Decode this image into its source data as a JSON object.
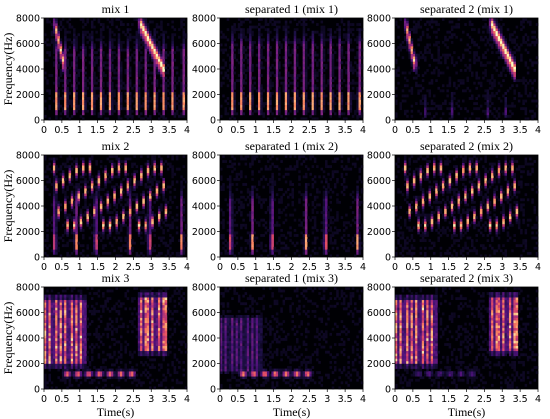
{
  "chart_data": [
    {
      "type": "heatmap",
      "title": "mix 1",
      "xlabel": "",
      "ylabel": "Frequency(Hz)",
      "xlim": [
        0,
        4
      ],
      "ylim": [
        0,
        8000
      ],
      "xticks": [
        "0",
        "0.5",
        "1",
        "1.5",
        "2",
        "2.5",
        "3",
        "3.5",
        "4"
      ],
      "yticks": [
        "0",
        "2000",
        "4000",
        "6000",
        "8000"
      ],
      "description_events": [
        {
          "kind": "sweep",
          "t0": 0.3,
          "t1": 0.55,
          "f0": 7600,
          "f1": 4500,
          "w": 0.05,
          "a": 0.9
        },
        {
          "kind": "sweep",
          "t0": 2.7,
          "t1": 3.35,
          "f0": 7600,
          "f1": 4000,
          "w": 0.12,
          "a": 1.0
        },
        {
          "kind": "pulses",
          "times": [
            0.35,
            0.6,
            0.85,
            1.1,
            1.35,
            1.6,
            1.85,
            2.1,
            2.35,
            2.6,
            2.85,
            3.1,
            3.35,
            3.6,
            3.9
          ],
          "fmin": 500,
          "fmax": 5500,
          "core": [
            800,
            2200
          ],
          "a": 0.85
        }
      ]
    },
    {
      "type": "heatmap",
      "title": "separated 1 (mix 1)",
      "xlabel": "",
      "ylabel": "",
      "xlim": [
        0,
        4
      ],
      "ylim": [
        0,
        8000
      ],
      "xticks": [
        "0",
        "0.5",
        "1",
        "1.5",
        "2",
        "2.5",
        "3",
        "3.5",
        "4"
      ],
      "yticks": [
        "0",
        "2000",
        "4000",
        "6000",
        "8000"
      ],
      "description_events": [
        {
          "kind": "pulses",
          "times": [
            0.35,
            0.6,
            0.85,
            1.1,
            1.35,
            1.6,
            1.85,
            2.1,
            2.35,
            2.6,
            2.85,
            3.1,
            3.35,
            3.6,
            3.9
          ],
          "fmin": 500,
          "fmax": 6000,
          "core": [
            800,
            2200
          ],
          "a": 0.85
        }
      ]
    },
    {
      "type": "heatmap",
      "title": "separated 2 (mix 1)",
      "xlabel": "",
      "ylabel": "",
      "xlim": [
        0,
        4
      ],
      "ylim": [
        0,
        8000
      ],
      "xticks": [
        "0",
        "0.5",
        "1",
        "1.5",
        "2",
        "2.5",
        "3",
        "3.5",
        "4"
      ],
      "yticks": [
        "0",
        "2000",
        "4000",
        "6000",
        "8000"
      ],
      "description_events": [
        {
          "kind": "sweep",
          "t0": 0.3,
          "t1": 0.55,
          "f0": 7600,
          "f1": 4500,
          "w": 0.05,
          "a": 0.9
        },
        {
          "kind": "sweep",
          "t0": 2.7,
          "t1": 3.35,
          "f0": 7600,
          "f1": 4000,
          "w": 0.12,
          "a": 1.0
        },
        {
          "kind": "pulses",
          "times": [
            0.85,
            1.6,
            2.6,
            3.1
          ],
          "fmin": 300,
          "fmax": 1500,
          "core": [
            500,
            1000
          ],
          "a": 0.25
        }
      ]
    },
    {
      "type": "heatmap",
      "title": "mix 2",
      "xlabel": "",
      "ylabel": "Frequency(Hz)",
      "xlim": [
        0,
        4
      ],
      "ylim": [
        0,
        8000
      ],
      "xticks": [
        "0",
        "0.5",
        "1",
        "1.5",
        "2",
        "2.5",
        "3",
        "3.5",
        "4"
      ],
      "yticks": [
        "0",
        "2000",
        "4000",
        "6000",
        "8000"
      ],
      "description_events": [
        {
          "kind": "chirps",
          "times": [
            0.3,
            0.5,
            0.7,
            0.9,
            1.1,
            1.3,
            1.5,
            1.7,
            1.9,
            2.1,
            2.3,
            2.5,
            2.7,
            2.9,
            3.1,
            3.3
          ],
          "fhi": 7000,
          "flo": 2500,
          "a": 0.9
        },
        {
          "kind": "pulses",
          "times": [
            0.3,
            0.9,
            1.45,
            2.4,
            2.95,
            3.85
          ],
          "fmin": 200,
          "fmax": 4500,
          "core": [
            600,
            1800
          ],
          "a": 0.8
        }
      ]
    },
    {
      "type": "heatmap",
      "title": "separated 1 (mix 2)",
      "xlabel": "",
      "ylabel": "",
      "xlim": [
        0,
        4
      ],
      "ylim": [
        0,
        8000
      ],
      "xticks": [
        "0",
        "0.5",
        "1",
        "1.5",
        "2",
        "2.5",
        "3",
        "3.5",
        "4"
      ],
      "yticks": [
        "0",
        "2000",
        "4000",
        "6000",
        "8000"
      ],
      "description_events": [
        {
          "kind": "pulses",
          "times": [
            0.3,
            0.9,
            1.45,
            2.4,
            2.95,
            3.85
          ],
          "fmin": 200,
          "fmax": 4500,
          "core": [
            600,
            1800
          ],
          "a": 0.85
        }
      ]
    },
    {
      "type": "heatmap",
      "title": "separated 2 (mix 2)",
      "xlabel": "",
      "ylabel": "",
      "xlim": [
        0,
        4
      ],
      "ylim": [
        0,
        8000
      ],
      "xticks": [
        "0",
        "0.5",
        "1",
        "1.5",
        "2",
        "2.5",
        "3",
        "3.5",
        "4"
      ],
      "yticks": [
        "0",
        "2000",
        "4000",
        "6000",
        "8000"
      ],
      "description_events": [
        {
          "kind": "chirps",
          "times": [
            0.3,
            0.5,
            0.7,
            0.9,
            1.1,
            1.3,
            1.5,
            1.7,
            1.9,
            2.1,
            2.3,
            2.5,
            2.7,
            2.9,
            3.1,
            3.3
          ],
          "fhi": 7000,
          "flo": 2500,
          "a": 0.9
        }
      ]
    },
    {
      "type": "heatmap",
      "title": "mix 3",
      "xlabel": "Time(s)",
      "ylabel": "Frequency(Hz)",
      "xlim": [
        0,
        4
      ],
      "ylim": [
        0,
        8000
      ],
      "xticks": [
        "0",
        "0.5",
        "1",
        "1.5",
        "2",
        "2.5",
        "3",
        "3.5",
        "4"
      ],
      "yticks": [
        "0",
        "2000",
        "4000",
        "6000",
        "8000"
      ],
      "description_events": [
        {
          "kind": "block",
          "t0": 0.0,
          "t1": 1.2,
          "fmin": 2000,
          "fmax": 7000,
          "step": 0.11,
          "a": 0.9
        },
        {
          "kind": "block",
          "t0": 2.6,
          "t1": 3.45,
          "fmin": 3000,
          "fmax": 7200,
          "step": 0.1,
          "a": 0.9
        },
        {
          "kind": "tones",
          "times": [
            0.65,
            0.95,
            1.25,
            1.55,
            1.85,
            2.15,
            2.45
          ],
          "f": 1200,
          "a": 0.9
        }
      ]
    },
    {
      "type": "heatmap",
      "title": "separated 1 (mix 3)",
      "xlabel": "Time(s)",
      "ylabel": "",
      "xlim": [
        0,
        4
      ],
      "ylim": [
        0,
        8000
      ],
      "xticks": [
        "0",
        "0.5",
        "1",
        "1.5",
        "2",
        "2.5",
        "3",
        "3.5",
        "4"
      ],
      "yticks": [
        "0",
        "2000",
        "4000",
        "6000",
        "8000"
      ],
      "description_events": [
        {
          "kind": "block",
          "t0": 0.0,
          "t1": 1.2,
          "fmin": 1500,
          "fmax": 5500,
          "step": 0.11,
          "a": 0.35
        },
        {
          "kind": "tones",
          "times": [
            0.65,
            0.95,
            1.25,
            1.55,
            1.85,
            2.15,
            2.45
          ],
          "f": 1200,
          "a": 0.95
        }
      ]
    },
    {
      "type": "heatmap",
      "title": "separated 2 (mix 3)",
      "xlabel": "Time(s)",
      "ylabel": "",
      "xlim": [
        0,
        4
      ],
      "ylim": [
        0,
        8000
      ],
      "xticks": [
        "0",
        "0.5",
        "1",
        "1.5",
        "2",
        "2.5",
        "3",
        "3.5",
        "4"
      ],
      "yticks": [
        "0",
        "2000",
        "4000",
        "6000",
        "8000"
      ],
      "description_events": [
        {
          "kind": "block",
          "t0": 0.0,
          "t1": 1.2,
          "fmin": 2000,
          "fmax": 7000,
          "step": 0.11,
          "a": 0.9
        },
        {
          "kind": "block",
          "t0": 2.6,
          "t1": 3.45,
          "fmin": 3000,
          "fmax": 7200,
          "step": 0.1,
          "a": 0.9
        },
        {
          "kind": "tones",
          "times": [
            0.65,
            0.95,
            1.25,
            1.55,
            1.85,
            2.15
          ],
          "f": 1200,
          "a": 0.3
        }
      ]
    }
  ],
  "colors": {
    "background": "#000004",
    "colormap": "magma"
  }
}
